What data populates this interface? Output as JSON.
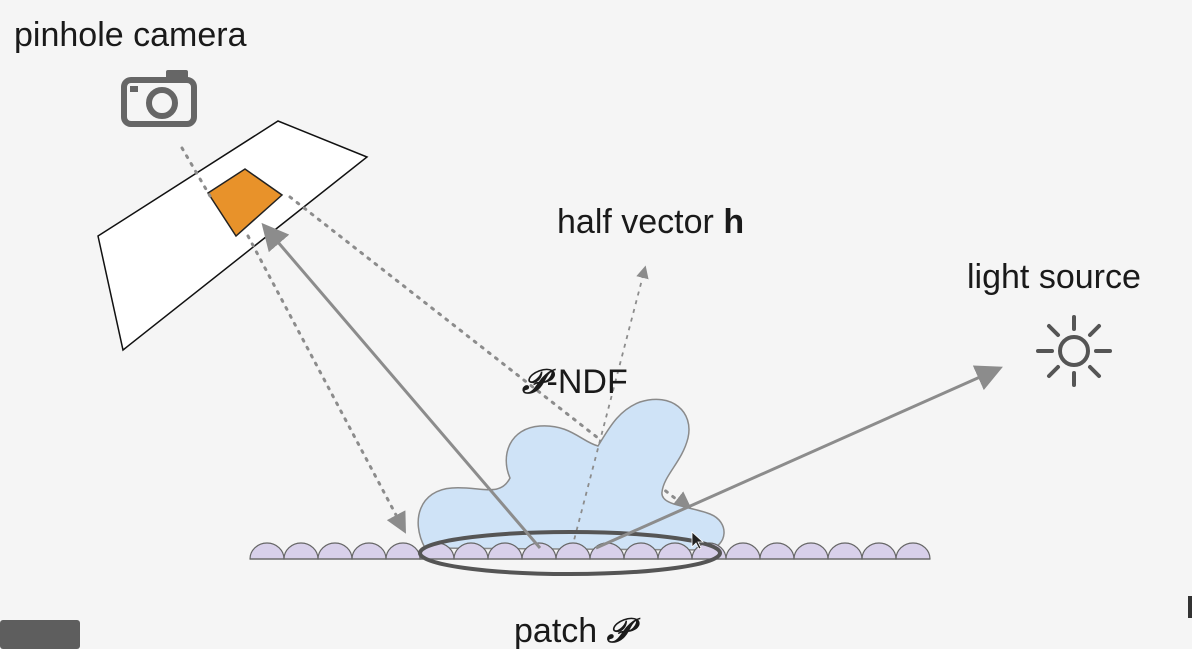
{
  "labels": {
    "camera": "pinhole camera",
    "half_vector_prefix": "half vector ",
    "half_vector_symbol": "h",
    "light": "light source",
    "ndf_symbol": "𝒫",
    "ndf_suffix": "-NDF",
    "patch_prefix": "patch ",
    "patch_symbol": "𝒫"
  },
  "icons": {
    "camera": "camera-icon",
    "light": "sun-icon",
    "cursor": "mouse-pointer-icon"
  },
  "colors": {
    "background": "#f5f5f5",
    "text": "#1a1a1a",
    "pixel_fill": "#e8922a",
    "ndf_fill": "#cfe3f7",
    "ndf_stroke": "#8a8a8a",
    "microfacet_fill": "#d8d0ea",
    "arrow": "#8c8c8c",
    "patch_outline": "#555555"
  }
}
